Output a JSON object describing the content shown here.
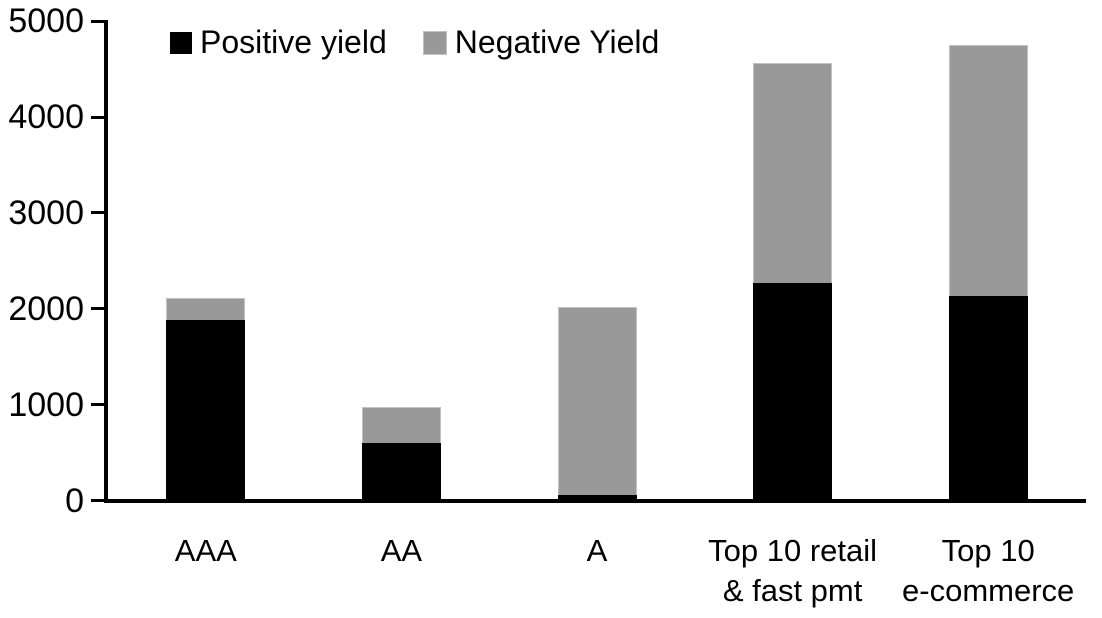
{
  "chart_data": {
    "type": "bar",
    "stacked": true,
    "title": "",
    "xlabel": "",
    "ylabel": "",
    "categories": [
      "AAA",
      "AA",
      "A",
      "Top 10 retail\n& fast pmt",
      "Top 10\ne-commerce"
    ],
    "series": [
      {
        "name": "Positive yield",
        "color": "#000000",
        "values": [
          1880,
          600,
          60,
          2270,
          2130
        ]
      },
      {
        "name": "Negative Yield",
        "color": "#999999",
        "values": [
          230,
          380,
          1960,
          2290,
          2620
        ]
      }
    ],
    "totals": [
      2110,
      980,
      2020,
      4560,
      4750
    ],
    "ylim": [
      0,
      5000
    ],
    "yticks": [
      0,
      1000,
      2000,
      3000,
      4000,
      5000
    ],
    "grid": false,
    "legend_position": "top-left-inside"
  }
}
